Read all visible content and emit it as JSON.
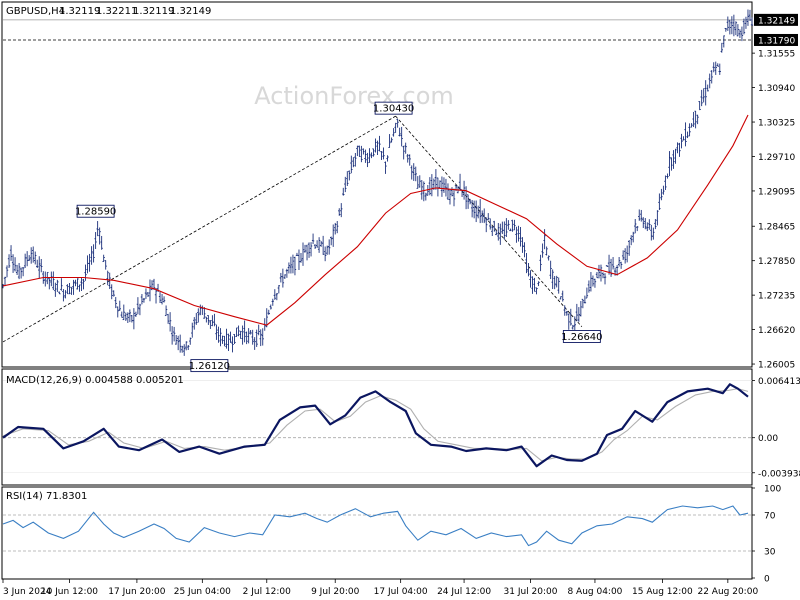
{
  "header": {
    "symbol": "GBPUSD,H4",
    "open": "1.32119",
    "high": "1.32211",
    "low": "1.32119",
    "close": "1.32149"
  },
  "watermark": "ActionForex.com",
  "colors": {
    "candle": "#1a2f7a",
    "ma": "#cc0000",
    "macd_main": "#0b1660",
    "macd_signal": "#b0b0b0",
    "rsi": "#3a7fc4",
    "grid_dash": "#a8a8a8",
    "axis": "#000000"
  },
  "chart_data": [
    {
      "type": "candlestick",
      "title": "GBPUSD,H4 1.32119 1.32211 1.32119 1.32149",
      "x_tick_labels": [
        "3 Jun 2024",
        "10 Jun 12:00",
        "17 Jun 20:00",
        "25 Jun 04:00",
        "2 Jul 12:00",
        "9 Jul 20:00",
        "17 Jul 04:00",
        "24 Jul 12:00",
        "31 Jul 20:00",
        "8 Aug 04:00",
        "15 Aug 12:00",
        "22 Aug 20:00"
      ],
      "y_tick_labels": [
        "1.31555",
        "1.30940",
        "1.30325",
        "1.29710",
        "1.29095",
        "1.28465",
        "1.27850",
        "1.27235",
        "1.26620",
        "1.26005"
      ],
      "ylim": [
        1.2597,
        1.3245
      ],
      "price_path": [
        {
          "t": 0,
          "p": 1.274
        },
        {
          "t": 8,
          "p": 1.28
        },
        {
          "t": 15,
          "p": 1.276
        },
        {
          "t": 28,
          "p": 1.28
        },
        {
          "t": 40,
          "p": 1.276
        },
        {
          "t": 60,
          "p": 1.273
        },
        {
          "t": 80,
          "p": 1.275
        },
        {
          "t": 90,
          "p": 1.28
        },
        {
          "t": 95,
          "p": 1.2852
        },
        {
          "t": 100,
          "p": 1.279
        },
        {
          "t": 108,
          "p": 1.273
        },
        {
          "t": 118,
          "p": 1.269
        },
        {
          "t": 128,
          "p": 1.268
        },
        {
          "t": 138,
          "p": 1.271
        },
        {
          "t": 150,
          "p": 1.274
        },
        {
          "t": 160,
          "p": 1.271
        },
        {
          "t": 170,
          "p": 1.265
        },
        {
          "t": 182,
          "p": 1.263
        },
        {
          "t": 196,
          "p": 1.27
        },
        {
          "t": 205,
          "p": 1.268
        },
        {
          "t": 215,
          "p": 1.265
        },
        {
          "t": 225,
          "p": 1.264
        },
        {
          "t": 235,
          "p": 1.266
        },
        {
          "t": 248,
          "p": 1.2645
        },
        {
          "t": 258,
          "p": 1.265
        },
        {
          "t": 268,
          "p": 1.272
        },
        {
          "t": 280,
          "p": 1.276
        },
        {
          "t": 295,
          "p": 1.279
        },
        {
          "t": 308,
          "p": 1.282
        },
        {
          "t": 322,
          "p": 1.28
        },
        {
          "t": 332,
          "p": 1.285
        },
        {
          "t": 342,
          "p": 1.293
        },
        {
          "t": 352,
          "p": 1.298
        },
        {
          "t": 362,
          "p": 1.297
        },
        {
          "t": 372,
          "p": 1.299
        },
        {
          "t": 380,
          "p": 1.296
        },
        {
          "t": 386,
          "p": 1.3
        },
        {
          "t": 392,
          "p": 1.303
        },
        {
          "t": 398,
          "p": 1.299
        },
        {
          "t": 405,
          "p": 1.296
        },
        {
          "t": 412,
          "p": 1.292
        },
        {
          "t": 420,
          "p": 1.291
        },
        {
          "t": 432,
          "p": 1.2925
        },
        {
          "t": 445,
          "p": 1.29
        },
        {
          "t": 455,
          "p": 1.292
        },
        {
          "t": 465,
          "p": 1.288
        },
        {
          "t": 475,
          "p": 1.287
        },
        {
          "t": 485,
          "p": 1.285
        },
        {
          "t": 495,
          "p": 1.283
        },
        {
          "t": 505,
          "p": 1.285
        },
        {
          "t": 515,
          "p": 1.283
        },
        {
          "t": 522,
          "p": 1.276
        },
        {
          "t": 530,
          "p": 1.273
        },
        {
          "t": 538,
          "p": 1.282
        },
        {
          "t": 545,
          "p": 1.276
        },
        {
          "t": 552,
          "p": 1.274
        },
        {
          "t": 560,
          "p": 1.269
        },
        {
          "t": 567,
          "p": 1.2672
        },
        {
          "t": 575,
          "p": 1.27
        },
        {
          "t": 582,
          "p": 1.274
        },
        {
          "t": 592,
          "p": 1.276
        },
        {
          "t": 602,
          "p": 1.277
        },
        {
          "t": 612,
          "p": 1.278
        },
        {
          "t": 620,
          "p": 1.28
        },
        {
          "t": 628,
          "p": 1.285
        },
        {
          "t": 636,
          "p": 1.286
        },
        {
          "t": 645,
          "p": 1.283
        },
        {
          "t": 655,
          "p": 1.29
        },
        {
          "t": 662,
          "p": 1.296
        },
        {
          "t": 672,
          "p": 1.299
        },
        {
          "t": 682,
          "p": 1.302
        },
        {
          "t": 690,
          "p": 1.305
        },
        {
          "t": 697,
          "p": 1.308
        },
        {
          "t": 705,
          "p": 1.312
        },
        {
          "t": 712,
          "p": 1.313
        },
        {
          "t": 716,
          "p": 1.318
        },
        {
          "t": 720,
          "p": 1.3205
        },
        {
          "t": 726,
          "p": 1.321
        },
        {
          "t": 732,
          "p": 1.319
        },
        {
          "t": 740,
          "p": 1.3215
        }
      ],
      "moving_average": [
        {
          "t": 0,
          "p": 1.274
        },
        {
          "t": 40,
          "p": 1.2755
        },
        {
          "t": 80,
          "p": 1.2755
        },
        {
          "t": 110,
          "p": 1.275
        },
        {
          "t": 150,
          "p": 1.2735
        },
        {
          "t": 190,
          "p": 1.2705
        },
        {
          "t": 230,
          "p": 1.2685
        },
        {
          "t": 262,
          "p": 1.267
        },
        {
          "t": 290,
          "p": 1.271
        },
        {
          "t": 320,
          "p": 1.276
        },
        {
          "t": 352,
          "p": 1.281
        },
        {
          "t": 380,
          "p": 1.287
        },
        {
          "t": 405,
          "p": 1.2905
        },
        {
          "t": 430,
          "p": 1.2915
        },
        {
          "t": 460,
          "p": 1.291
        },
        {
          "t": 490,
          "p": 1.2885
        },
        {
          "t": 520,
          "p": 1.286
        },
        {
          "t": 550,
          "p": 1.2815
        },
        {
          "t": 580,
          "p": 1.2775
        },
        {
          "t": 610,
          "p": 1.276
        },
        {
          "t": 640,
          "p": 1.279
        },
        {
          "t": 670,
          "p": 1.284
        },
        {
          "t": 700,
          "p": 1.292
        },
        {
          "t": 725,
          "p": 1.299
        },
        {
          "t": 740,
          "p": 1.3045
        }
      ],
      "trendline_lines": [
        [
          {
            "t": 0,
            "p": 1.264
          },
          {
            "t": 390,
            "p": 1.3043
          }
        ],
        [
          {
            "t": 390,
            "p": 1.3043
          },
          {
            "t": 575,
            "p": 1.2667
          }
        ]
      ],
      "callouts": [
        {
          "label": "1.28590",
          "t": 92,
          "p": 1.2859
        },
        {
          "label": "1.30430",
          "t": 388,
          "p": 1.3043
        },
        {
          "label": "1.26120",
          "t": 205,
          "p": 1.2612
        },
        {
          "label": "1.26640",
          "t": 575,
          "p": 1.2664
        }
      ],
      "current_price": {
        "label": "1.32149",
        "p": 1.32149
      },
      "reference_price": {
        "label": "1.31790",
        "p": 1.3179
      }
    },
    {
      "type": "line",
      "title": "MACD(12,26,9) 0.004588 0.005201",
      "y_tick_labels": [
        "0.006413",
        "0.00",
        "-0.003938"
      ],
      "ylim": [
        -0.0052,
        0.0076
      ],
      "series": [
        {
          "name": "MACD",
          "values": [
            [
              0,
              0.0
            ],
            [
              15,
              0.0012
            ],
            [
              40,
              0.001
            ],
            [
              60,
              -0.0012
            ],
            [
              80,
              -0.0004
            ],
            [
              100,
              0.001
            ],
            [
              115,
              -0.001
            ],
            [
              135,
              -0.0014
            ],
            [
              158,
              -0.0002
            ],
            [
              175,
              -0.0016
            ],
            [
              195,
              -0.001
            ],
            [
              215,
              -0.0018
            ],
            [
              240,
              -0.001
            ],
            [
              260,
              -0.0008
            ],
            [
              275,
              0.002
            ],
            [
              295,
              0.0034
            ],
            [
              310,
              0.0036
            ],
            [
              325,
              0.0015
            ],
            [
              340,
              0.0025
            ],
            [
              355,
              0.0045
            ],
            [
              370,
              0.0052
            ],
            [
              385,
              0.004
            ],
            [
              400,
              0.003
            ],
            [
              410,
              0.0005
            ],
            [
              425,
              -0.0008
            ],
            [
              445,
              -0.001
            ],
            [
              460,
              -0.0015
            ],
            [
              480,
              -0.0012
            ],
            [
              500,
              -0.0014
            ],
            [
              515,
              -0.001
            ],
            [
              530,
              -0.0032
            ],
            [
              545,
              -0.002
            ],
            [
              560,
              -0.0025
            ],
            [
              575,
              -0.0026
            ],
            [
              590,
              -0.0018
            ],
            [
              600,
              0.0003
            ],
            [
              615,
              0.001
            ],
            [
              628,
              0.003
            ],
            [
              645,
              0.0018
            ],
            [
              660,
              0.004
            ],
            [
              680,
              0.0052
            ],
            [
              700,
              0.0055
            ],
            [
              715,
              0.005
            ],
            [
              722,
              0.006
            ],
            [
              730,
              0.0055
            ],
            [
              740,
              0.0046
            ]
          ]
        },
        {
          "name": "Signal",
          "values": [
            [
              0,
              0.0002
            ],
            [
              20,
              0.001
            ],
            [
              45,
              0.0008
            ],
            [
              65,
              -0.0008
            ],
            [
              85,
              -0.0004
            ],
            [
              105,
              0.0006
            ],
            [
              120,
              -0.0006
            ],
            [
              140,
              -0.0012
            ],
            [
              162,
              -0.0004
            ],
            [
              180,
              -0.0012
            ],
            [
              200,
              -0.001
            ],
            [
              220,
              -0.0014
            ],
            [
              245,
              -0.001
            ],
            [
              265,
              -0.0006
            ],
            [
              282,
              0.0014
            ],
            [
              300,
              0.003
            ],
            [
              315,
              0.0032
            ],
            [
              330,
              0.0018
            ],
            [
              345,
              0.0024
            ],
            [
              360,
              0.004
            ],
            [
              375,
              0.0047
            ],
            [
              390,
              0.0042
            ],
            [
              405,
              0.0032
            ],
            [
              418,
              0.001
            ],
            [
              432,
              -0.0004
            ],
            [
              450,
              -0.0008
            ],
            [
              468,
              -0.0012
            ],
            [
              485,
              -0.0012
            ],
            [
              505,
              -0.0013
            ],
            [
              520,
              -0.0012
            ],
            [
              535,
              -0.0026
            ],
            [
              550,
              -0.0022
            ],
            [
              565,
              -0.0024
            ],
            [
              580,
              -0.0024
            ],
            [
              595,
              -0.0016
            ],
            [
              607,
              -0.0002
            ],
            [
              620,
              0.0008
            ],
            [
              635,
              0.0024
            ],
            [
              650,
              0.002
            ],
            [
              668,
              0.0035
            ],
            [
              688,
              0.0048
            ],
            [
              705,
              0.0052
            ],
            [
              720,
              0.0053
            ],
            [
              730,
              0.0055
            ],
            [
              740,
              0.0052
            ]
          ]
        }
      ]
    },
    {
      "type": "line",
      "title": "RSI(14) 71.8301",
      "y_tick_labels": [
        "100",
        "70",
        "30",
        "0"
      ],
      "ylim": [
        0,
        100
      ],
      "levels": [
        70,
        30
      ],
      "series": [
        {
          "name": "RSI",
          "values": [
            [
              0,
              60
            ],
            [
              10,
              64
            ],
            [
              20,
              56
            ],
            [
              30,
              62
            ],
            [
              45,
              50
            ],
            [
              60,
              44
            ],
            [
              75,
              52
            ],
            [
              90,
              73
            ],
            [
              100,
              60
            ],
            [
              110,
              50
            ],
            [
              120,
              45
            ],
            [
              135,
              52
            ],
            [
              150,
              60
            ],
            [
              160,
              55
            ],
            [
              172,
              44
            ],
            [
              185,
              40
            ],
            [
              200,
              56
            ],
            [
              215,
              50
            ],
            [
              230,
              46
            ],
            [
              245,
              50
            ],
            [
              258,
              48
            ],
            [
              270,
              70
            ],
            [
              285,
              68
            ],
            [
              300,
              72
            ],
            [
              312,
              66
            ],
            [
              322,
              62
            ],
            [
              335,
              70
            ],
            [
              350,
              77
            ],
            [
              365,
              68
            ],
            [
              378,
              72
            ],
            [
              392,
              74
            ],
            [
              400,
              58
            ],
            [
              412,
              42
            ],
            [
              425,
              52
            ],
            [
              440,
              48
            ],
            [
              455,
              55
            ],
            [
              470,
              44
            ],
            [
              485,
              50
            ],
            [
              500,
              46
            ],
            [
              515,
              48
            ],
            [
              522,
              36
            ],
            [
              530,
              40
            ],
            [
              540,
              52
            ],
            [
              552,
              42
            ],
            [
              565,
              38
            ],
            [
              575,
              50
            ],
            [
              590,
              58
            ],
            [
              605,
              60
            ],
            [
              620,
              68
            ],
            [
              635,
              66
            ],
            [
              645,
              62
            ],
            [
              660,
              76
            ],
            [
              675,
              80
            ],
            [
              690,
              78
            ],
            [
              705,
              80
            ],
            [
              715,
              76
            ],
            [
              725,
              80
            ],
            [
              732,
              70
            ],
            [
              740,
              72
            ]
          ]
        }
      ]
    }
  ]
}
